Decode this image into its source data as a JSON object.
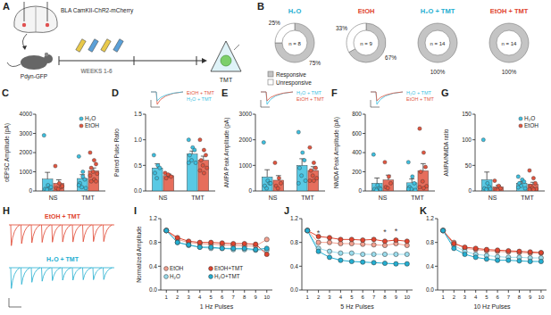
{
  "diagram": {
    "panel": "A",
    "labels": {
      "injection": "BLA CamKII-ChR2-mCherry",
      "mouse": "Pdyn-GFP",
      "timeline": "WEEKS 1-6",
      "stress": "TMT"
    }
  },
  "chart_data": [
    {
      "type": "pie",
      "panel": "B",
      "title": "H₂O",
      "categories": [
        "Responsive",
        "Unresponsive"
      ],
      "values": [
        75,
        25
      ],
      "value_labels": [
        "75%",
        "25%"
      ],
      "colors": [
        "#c4c4c4",
        "#ffffff"
      ],
      "annotations": [
        "n = 8"
      ],
      "legend": "bottom"
    },
    {
      "type": "pie",
      "title": "EtOH",
      "values": [
        67,
        33
      ],
      "value_labels": [
        "67%",
        "33%"
      ],
      "colors": [
        "#c4c4c4",
        "#ffffff"
      ],
      "annotations": [
        "n = 9"
      ]
    },
    {
      "type": "pie",
      "title": "H₂O + TMT",
      "values": [
        100,
        0
      ],
      "value_labels": [
        "100%",
        null
      ],
      "colors": [
        "#c4c4c4",
        "#ffffff"
      ],
      "annotations": [
        "n = 14"
      ]
    },
    {
      "type": "pie",
      "title": "EtOH + TMT",
      "values": [
        100,
        0
      ],
      "value_labels": [
        "100%",
        null
      ],
      "colors": [
        "#c4c4c4",
        "#ffffff"
      ],
      "annotations": [
        "n = 14"
      ]
    },
    {
      "type": "bar",
      "panel": "C",
      "categories": [
        "NS",
        "TMT"
      ],
      "y_label": "oEPSC Amplitude (pA)",
      "ylim": [
        0,
        4000
      ],
      "yticks": [
        0,
        1000,
        2000,
        3000,
        4000
      ],
      "legend": "upper right",
      "series": [
        {
          "name": "H₂O",
          "color": "#3cbfdf",
          "values": [
            620,
            650
          ],
          "errors": [
            350,
            200
          ],
          "points": [
            [
              2900,
              300,
              150,
              100,
              80,
              200
            ],
            [
              1800,
              1000,
              600,
              400,
              200,
              150,
              300,
              750
            ]
          ]
        },
        {
          "name": "EtOH",
          "color": "#e2553f",
          "values": [
            400,
            1050
          ],
          "errors": [
            180,
            150
          ],
          "points": [
            [
              1300,
              400,
              200,
              150,
              100,
              250
            ],
            [
              2000,
              1600,
              1400,
              1200,
              1000,
              900,
              800,
              600,
              500,
              500
            ]
          ]
        }
      ]
    },
    {
      "type": "bar",
      "panel": "D",
      "categories": [
        "NS",
        "TMT"
      ],
      "y_label": "Paired Pulse Ratio",
      "ylim": [
        0,
        1.5
      ],
      "yticks": [
        {
          "value": 0,
          "label": "0.0"
        },
        {
          "value": 0.5,
          "label": "0.5"
        },
        {
          "value": 1,
          "label": "1.0"
        },
        {
          "value": 1.5,
          "label": "1.5"
        }
      ],
      "annotations": [
        "EtOH + TMT",
        "H₂O + TMT"
      ],
      "series": [
        {
          "name": "H₂O",
          "color": "#3cbfdf",
          "values": [
            0.45,
            0.72
          ],
          "errors": [
            0.08,
            0.06
          ],
          "points": [
            [
              0.7,
              0.5,
              0.45,
              0.35,
              0.25
            ],
            [
              1.0,
              0.85,
              0.8,
              0.7,
              0.6,
              0.55,
              0.55
            ]
          ]
        },
        {
          "name": "EtOH",
          "color": "#e2553f",
          "values": [
            0.3,
            0.6
          ],
          "errors": [
            0.03,
            0.08
          ],
          "points": [
            [
              0.35,
              0.3,
              0.28,
              0.25,
              0.32
            ],
            [
              1.0,
              0.8,
              0.7,
              0.6,
              0.5,
              0.45,
              0.4,
              0.35
            ]
          ]
        }
      ]
    },
    {
      "type": "bar",
      "panel": "E",
      "categories": [
        "NS",
        "TMT"
      ],
      "y_label": "AMPA Peak Amplitude (pA)",
      "ylim": [
        0,
        3000
      ],
      "yticks": [
        0,
        1000,
        2000,
        3000
      ],
      "annotations": [
        "H₂O + TMT",
        "EtOH + TMT"
      ],
      "series": [
        {
          "name": "H₂O",
          "color": "#3cbfdf",
          "values": [
            550,
            1000
          ],
          "errors": [
            280,
            260
          ],
          "points": [
            [
              1900,
              400,
              300,
              200,
              100,
              300
            ],
            [
              2300,
              1500,
              1200,
              900,
              600,
              400,
              300
            ]
          ]
        },
        {
          "name": "EtOH",
          "color": "#e2553f",
          "values": [
            420,
            800
          ],
          "errors": [
            180,
            150
          ],
          "points": [
            [
              1100,
              500,
              300,
              200,
              100
            ],
            [
              1700,
              1100,
              900,
              800,
              600,
              500,
              400,
              400
            ]
          ]
        }
      ]
    },
    {
      "type": "bar",
      "panel": "F",
      "categories": [
        "NS",
        "TMT"
      ],
      "y_label": "NMDA Peak Amplitude (pA)",
      "ylim": [
        0,
        800
      ],
      "yticks": [
        0,
        200,
        400,
        600,
        800
      ],
      "annotations": [
        "H₂O + TMT",
        "EtOH + TMT"
      ],
      "series": [
        {
          "name": "H₂O",
          "color": "#3cbfdf",
          "values": [
            80,
            85
          ],
          "errors": [
            55,
            40
          ],
          "points": [
            [
              380,
              60,
              30,
              20,
              10,
              20
            ],
            [
              300,
              150,
              80,
              40,
              20,
              10,
              20
            ]
          ]
        },
        {
          "name": "EtOH",
          "color": "#e2553f",
          "values": [
            115,
            210
          ],
          "errors": [
            50,
            75
          ],
          "points": [
            [
              300,
              150,
              80,
              40,
              30
            ],
            [
              650,
              400,
              250,
              200,
              100,
              50,
              40,
              30
            ]
          ]
        }
      ]
    },
    {
      "type": "bar",
      "panel": "G",
      "categories": [
        "NS",
        "TMT"
      ],
      "y_label": "AMPA/NMDA ratio",
      "ylim": [
        0,
        150
      ],
      "yticks": [
        0,
        50,
        100,
        150
      ],
      "legend": "upper right",
      "series": [
        {
          "name": "H₂O",
          "color": "#3cbfdf",
          "values": [
            22,
            15
          ],
          "errors": [
            15,
            3
          ],
          "points": [
            [
              100,
              15,
              8,
              5,
              3,
              4
            ],
            [
              28,
              22,
              18,
              15,
              10,
              5,
              7
            ]
          ]
        },
        {
          "name": "EtOH",
          "color": "#e2553f",
          "values": [
            8,
            13
          ],
          "errors": [
            3,
            4
          ],
          "points": [
            [
              20,
              10,
              5,
              3,
              2
            ],
            [
              40,
              25,
              15,
              10,
              6,
              4,
              3,
              3
            ]
          ]
        }
      ]
    },
    {
      "type": "trace",
      "panel": "H",
      "ylim": [
        0,
        1.2
      ],
      "tick_labels": false,
      "series": [
        {
          "name": "EtOH + TMT",
          "color": "#e0442e",
          "values": [
            1,
            0.9,
            0.86,
            0.84,
            0.83,
            0.82,
            0.82,
            0.81,
            0.8,
            0.8
          ]
        },
        {
          "name": "H₂O + TMT",
          "color": "#23aed1",
          "values": [
            1,
            0.8,
            0.7,
            0.65,
            0.62,
            0.6,
            0.6,
            0.58,
            0.58,
            0.57
          ]
        }
      ]
    },
    {
      "type": "line",
      "panel": "I",
      "x": [
        1,
        2,
        3,
        4,
        5,
        6,
        7,
        8,
        9,
        10
      ],
      "xlim": [
        0.5,
        10.5
      ],
      "xticks": [
        1,
        2,
        3,
        4,
        5,
        6,
        7,
        8,
        9,
        10
      ],
      "ylim": [
        0,
        1.2
      ],
      "yticks": [
        {
          "value": 0,
          "label": "0.0"
        },
        {
          "value": 0.4,
          "label": "0.4"
        },
        {
          "value": 0.8,
          "label": "0.8"
        },
        {
          "value": 1.2,
          "label": "1.2"
        }
      ],
      "x_label": "1 Hz Pulses",
      "y_label": "Normalized Amplitude",
      "legend": "lower left",
      "marker": "circle",
      "series": [
        {
          "name": "EtOH",
          "color": "#f3a08f",
          "values": [
            1,
            0.85,
            0.8,
            0.78,
            0.77,
            0.76,
            0.75,
            0.74,
            0.74,
            0.85
          ]
        },
        {
          "name": "H₂O",
          "color": "#9adcec",
          "values": [
            1,
            0.8,
            0.75,
            0.72,
            0.7,
            0.7,
            0.68,
            0.68,
            0.67,
            0.67
          ]
        },
        {
          "name": "EtOH+TMT",
          "color": "#e0442e",
          "values": [
            1,
            0.88,
            0.82,
            0.8,
            0.8,
            0.79,
            0.78,
            0.78,
            0.77,
            0.6
          ]
        },
        {
          "name": "H₂O+TMT",
          "color": "#23aed1",
          "values": [
            1,
            0.8,
            0.76,
            0.72,
            0.72,
            0.7,
            0.7,
            0.7,
            0.68,
            0.7
          ]
        }
      ]
    },
    {
      "type": "line",
      "panel": "J",
      "x": [
        1,
        2,
        3,
        4,
        5,
        6,
        7,
        8,
        9,
        10
      ],
      "xlim": [
        0.5,
        10.5
      ],
      "xticks": [
        1,
        2,
        3,
        4,
        5,
        6,
        7,
        8,
        9,
        10
      ],
      "ylim": [
        0,
        1.2
      ],
      "yticks": [
        {
          "value": 0,
          "label": "0.0"
        },
        {
          "value": 0.4,
          "label": "0.4"
        },
        {
          "value": 0.8,
          "label": "0.8"
        },
        {
          "value": 1.2,
          "label": "1.2"
        }
      ],
      "x_label": "5 Hz Pulses",
      "marker": "circle",
      "annotations": [
        {
          "text": "*",
          "x": 2,
          "y": 0.92
        },
        {
          "text": "*",
          "x": 8,
          "y": 0.93
        },
        {
          "text": "*",
          "x": 9,
          "y": 0.95
        }
      ],
      "series": [
        {
          "name": "EtOH",
          "color": "#f3a08f",
          "values": [
            1,
            0.8,
            0.8,
            0.78,
            0.78,
            0.77,
            0.76,
            0.75,
            0.78,
            0.75
          ]
        },
        {
          "name": "H₂O",
          "color": "#9adcec",
          "values": [
            1,
            0.7,
            0.65,
            0.62,
            0.62,
            0.6,
            0.6,
            0.6,
            0.6,
            0.6
          ]
        },
        {
          "name": "EtOH+TMT",
          "color": "#e0442e",
          "values": [
            1,
            0.9,
            0.88,
            0.85,
            0.85,
            0.84,
            0.85,
            0.82,
            0.84,
            0.82
          ]
        },
        {
          "name": "H₂O+TMT",
          "color": "#23aed1",
          "values": [
            1,
            0.65,
            0.55,
            0.5,
            0.48,
            0.47,
            0.46,
            0.45,
            0.44,
            0.44
          ]
        }
      ]
    },
    {
      "type": "line",
      "panel": "K",
      "x": [
        1,
        2,
        3,
        4,
        5,
        6,
        7,
        8,
        9,
        10
      ],
      "xlim": [
        0.5,
        10.5
      ],
      "xticks": [
        1,
        2,
        3,
        4,
        5,
        6,
        7,
        8,
        9,
        10
      ],
      "ylim": [
        0,
        1.2
      ],
      "yticks": [
        {
          "value": 0,
          "label": "0.0"
        },
        {
          "value": 0.4,
          "label": "0.4"
        },
        {
          "value": 0.8,
          "label": "0.8"
        },
        {
          "value": 1.2,
          "label": "1.2"
        }
      ],
      "x_label": "10 Hz Pulses",
      "marker": "circle",
      "series": [
        {
          "name": "EtOH",
          "color": "#f3a08f",
          "values": [
            1,
            0.8,
            0.7,
            0.68,
            0.66,
            0.65,
            0.64,
            0.63,
            0.62,
            0.62
          ]
        },
        {
          "name": "H₂O",
          "color": "#9adcec",
          "values": [
            1,
            0.75,
            0.65,
            0.6,
            0.58,
            0.56,
            0.55,
            0.55,
            0.54,
            0.54
          ]
        },
        {
          "name": "EtOH+TMT",
          "color": "#e0442e",
          "values": [
            1,
            0.78,
            0.72,
            0.7,
            0.68,
            0.67,
            0.66,
            0.65,
            0.64,
            0.63
          ]
        },
        {
          "name": "H₂O+TMT",
          "color": "#23aed1",
          "values": [
            1,
            0.7,
            0.6,
            0.55,
            0.52,
            0.5,
            0.5,
            0.49,
            0.48,
            0.48
          ]
        }
      ]
    }
  ]
}
